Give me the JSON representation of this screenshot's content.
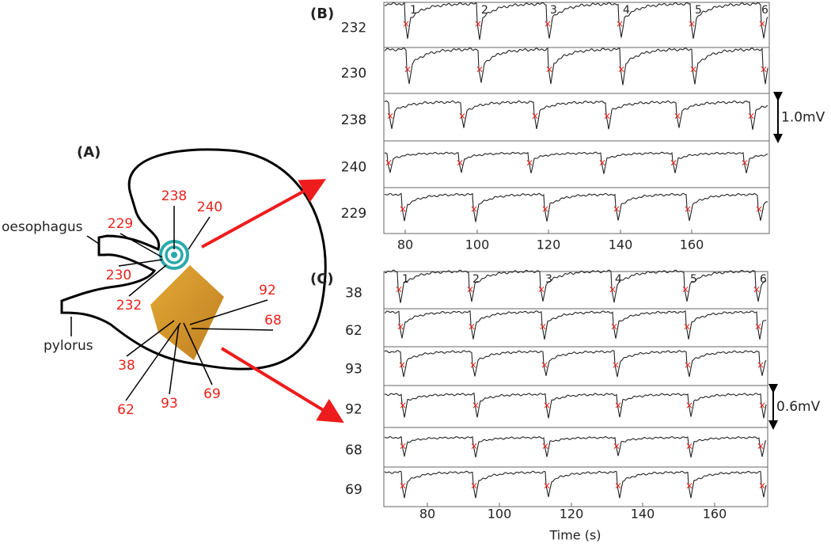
{
  "panel_a": {
    "label": "(A)",
    "oesophagus": "oesophagus",
    "pylorus": "pylorus",
    "electrodes": [
      "238",
      "240",
      "229",
      "230",
      "232",
      "92",
      "68",
      "38",
      "62",
      "93",
      "69"
    ]
  },
  "panel_b": {
    "label": "(B)",
    "channels": [
      "232",
      "230",
      "238",
      "240",
      "229"
    ],
    "beats": [
      "1",
      "2",
      "3",
      "4",
      "5",
      "6"
    ],
    "x_ticks": [
      "80",
      "100",
      "120",
      "140",
      "160"
    ],
    "scale": "1.0mV"
  },
  "panel_c": {
    "label": "(C)",
    "channels": [
      "38",
      "62",
      "93",
      "92",
      "68",
      "69"
    ],
    "beats": [
      "1",
      "2",
      "3",
      "4",
      "5",
      "6"
    ],
    "x_ticks": [
      "80",
      "100",
      "120",
      "140",
      "160"
    ],
    "scale": "0.6mV",
    "x_label": "Time (s)"
  }
}
